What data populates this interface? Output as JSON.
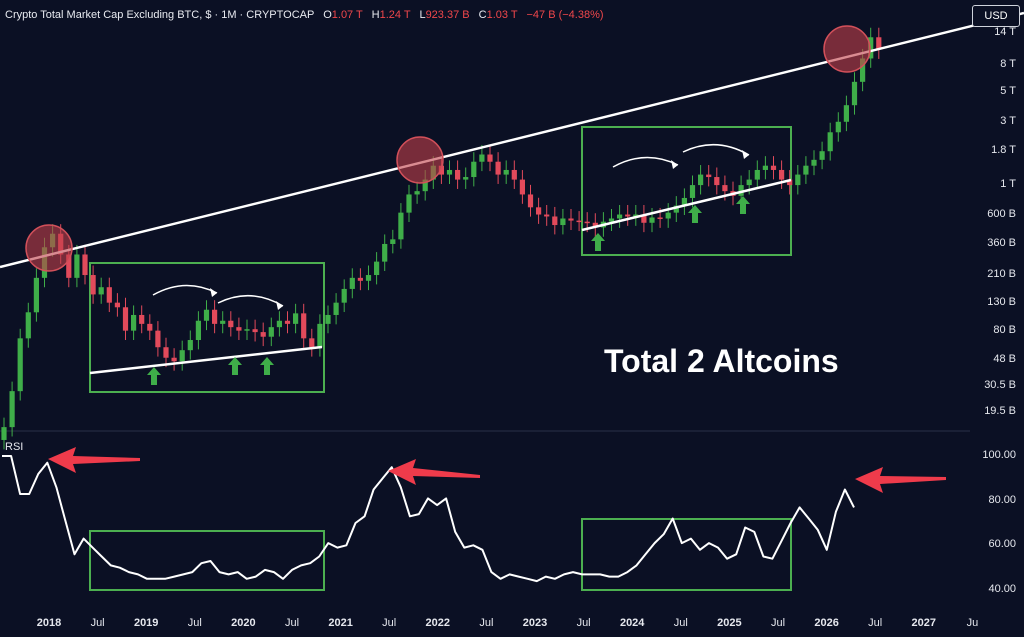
{
  "header": {
    "symbol": "Crypto Total Market Cap Excluding BTC, $ · 1M · CRYPTOCAP",
    "o_label": "O",
    "o_value": "1.07 T",
    "h_label": "H",
    "h_value": "1.24 T",
    "l_label": "L",
    "l_value": "923.37 B",
    "c_label": "C",
    "c_value": "1.03 T",
    "change": "−47 B (−4.38%)"
  },
  "currency_button": "USD",
  "annotation": "Total 2 Altcoins",
  "rsi_label": "RSI",
  "colors": {
    "background": "#0b1024",
    "up": "#3fae49",
    "down": "#e24a5b",
    "box": "#4caf50",
    "arrow_red": "#ef3b4b",
    "arrow_green": "#3fae49",
    "circle": "#c2404a"
  },
  "chart_data": [
    {
      "type": "candlestick",
      "scale": "log",
      "y_tick_labels": [
        "14 T",
        "8 T",
        "5 T",
        "3 T",
        "1.8 T",
        "1 T",
        "600 B",
        "360 B",
        "210 B",
        "130 B",
        "80 B",
        "48 B",
        "30.5 B",
        "19.5 B"
      ],
      "x_tick_labels": [
        "2018",
        "Jul",
        "2019",
        "Jul",
        "2020",
        "Jul",
        "2021",
        "Jul",
        "2022",
        "Jul",
        "2023",
        "Jul",
        "2024",
        "Jul",
        "2025",
        "Jul",
        "2026",
        "Jul",
        "2027",
        "Ju"
      ],
      "series": [
        {
          "closes": [
            15,
            28,
            70,
            110,
            200,
            340,
            430,
            300,
            200,
            300,
            210,
            150,
            170,
            130,
            120,
            80,
            105,
            90,
            80,
            60,
            50,
            47,
            57,
            68,
            95,
            115,
            90,
            95,
            85,
            80,
            82,
            78,
            72,
            85,
            95,
            90,
            108,
            70,
            60,
            90,
            105,
            130,
            165,
            200,
            190,
            210,
            265,
            360,
            390,
            620,
            850,
            900,
            1100,
            1400,
            1200,
            1300,
            1100,
            1150,
            1500,
            1700,
            1500,
            1200,
            1300,
            1100,
            850,
            680,
            600,
            580,
            500,
            560,
            540,
            530,
            520,
            480,
            530,
            560,
            600,
            580,
            600,
            520,
            570,
            560,
            620,
            700,
            800,
            1000,
            1200,
            1150,
            1000,
            900,
            830,
            1000,
            1100,
            1300,
            1400,
            1300,
            1100,
            1000,
            1200,
            1400,
            1550,
            1800,
            2500,
            3000,
            4000,
            6000,
            9000,
            13000,
            10500
          ]
        }
      ]
    },
    {
      "type": "line",
      "title": "RSI",
      "y_tick_labels": [
        "100.00",
        "80.00",
        "60.00",
        "40.00"
      ],
      "series": [
        {
          "values": [
            100,
            100,
            83,
            83,
            92,
            97,
            86,
            71,
            56,
            63,
            59,
            55,
            51,
            50,
            48,
            47,
            45,
            45,
            45,
            46,
            47,
            48,
            52,
            53,
            48,
            47,
            48,
            45,
            46,
            49,
            48,
            45,
            49,
            51,
            52,
            55,
            61,
            59,
            60,
            70,
            73,
            85,
            90,
            95,
            86,
            73,
            74,
            81,
            78,
            81,
            66,
            59,
            60,
            58,
            48,
            45,
            47,
            46,
            45,
            44,
            46,
            45,
            47,
            48,
            47,
            47,
            47,
            46,
            46,
            48,
            51,
            56,
            61,
            65,
            72,
            61,
            63,
            58,
            61,
            59,
            54,
            56,
            68,
            66,
            55,
            54,
            62,
            70,
            77,
            72,
            67,
            58,
            75,
            85,
            77
          ]
        }
      ]
    }
  ]
}
